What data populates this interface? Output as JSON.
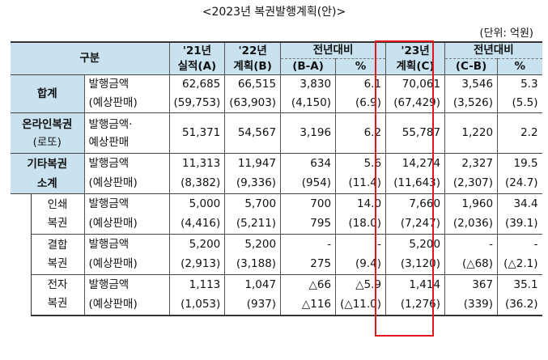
{
  "title": "<2023년 복권발행계획(안)>",
  "unit": "(단위: 억원)",
  "headers": {
    "category": "구분",
    "col21": [
      "'21년",
      "실적(A)"
    ],
    "col22": [
      "'22년",
      "계획(B)"
    ],
    "yoy1": "전년대비",
    "ba": "(B-A)",
    "pct": "%",
    "col23": [
      "'23년",
      "계획(C)"
    ],
    "yoy2": "전년대비",
    "cb": "(C-B)",
    "pct2": "%"
  },
  "rows": {
    "total": {
      "name": "합계",
      "issue_label": "발행금액",
      "sales_label": "(예상판매)",
      "issue": [
        "62,685",
        "66,515",
        "3,830",
        "6.1",
        "70,061",
        "3,546",
        "5.3"
      ],
      "sales": [
        "(59,753)",
        "(63,903)",
        "(4,150)",
        "(6.9)",
        "(67,429)",
        "(3,526)",
        "(5.5)"
      ]
    },
    "online": {
      "name": "온라인복권",
      "sub": "(로또)",
      "label1": "발행금액·",
      "label2": "예상판매",
      "values": [
        "51,371",
        "54,567",
        "3,196",
        "6.2",
        "55,787",
        "1,220",
        "2.2"
      ]
    },
    "other": {
      "name1": "기타복권",
      "name2": "소계",
      "issue_label": "발행금액",
      "sales_label": "(예상판매)",
      "issue": [
        "11,313",
        "11,947",
        "634",
        "5.6",
        "14,274",
        "2,327",
        "19.5"
      ],
      "sales": [
        "(8,382)",
        "(9,336)",
        "(954)",
        "(11.4)",
        "(11,643)",
        "(2,307)",
        "(24.7)"
      ]
    },
    "print": {
      "name1": "인쇄",
      "name2": "복권",
      "issue_label": "발행금액",
      "sales_label": "(예상판매)",
      "issue": [
        "5,000",
        "5,700",
        "700",
        "14.0",
        "7,660",
        "1,960",
        "34.4"
      ],
      "sales": [
        "(4,416)",
        "(5,211)",
        "795",
        "(18.0)",
        "(7,247)",
        "(2,036)",
        "(39.1)"
      ]
    },
    "combined": {
      "name1": "결합",
      "name2": "복권",
      "issue_label": "발행금액",
      "sales_label": "(예상판매)",
      "issue": [
        "5,200",
        "5,200",
        "-",
        "-",
        "5,200",
        "-",
        "-"
      ],
      "sales": [
        "(2,913)",
        "(3,188)",
        "275",
        "(9.4)",
        "(3,120)",
        "(△68)",
        "(△2.1)"
      ]
    },
    "electronic": {
      "name1": "전자",
      "name2": "복권",
      "issue_label": "발행금액",
      "sales_label": "(예상판매)",
      "issue": [
        "1,113",
        "1,047",
        "△66",
        "△5.9",
        "1,414",
        "367",
        "35.1"
      ],
      "sales": [
        "(1,053)",
        "(937)",
        "△116",
        "(△11.0)",
        "(1,276)",
        "(339)",
        "(36.2)"
      ]
    }
  },
  "highlight_color": "#e0181e",
  "header_bg": "#c9e2f0"
}
